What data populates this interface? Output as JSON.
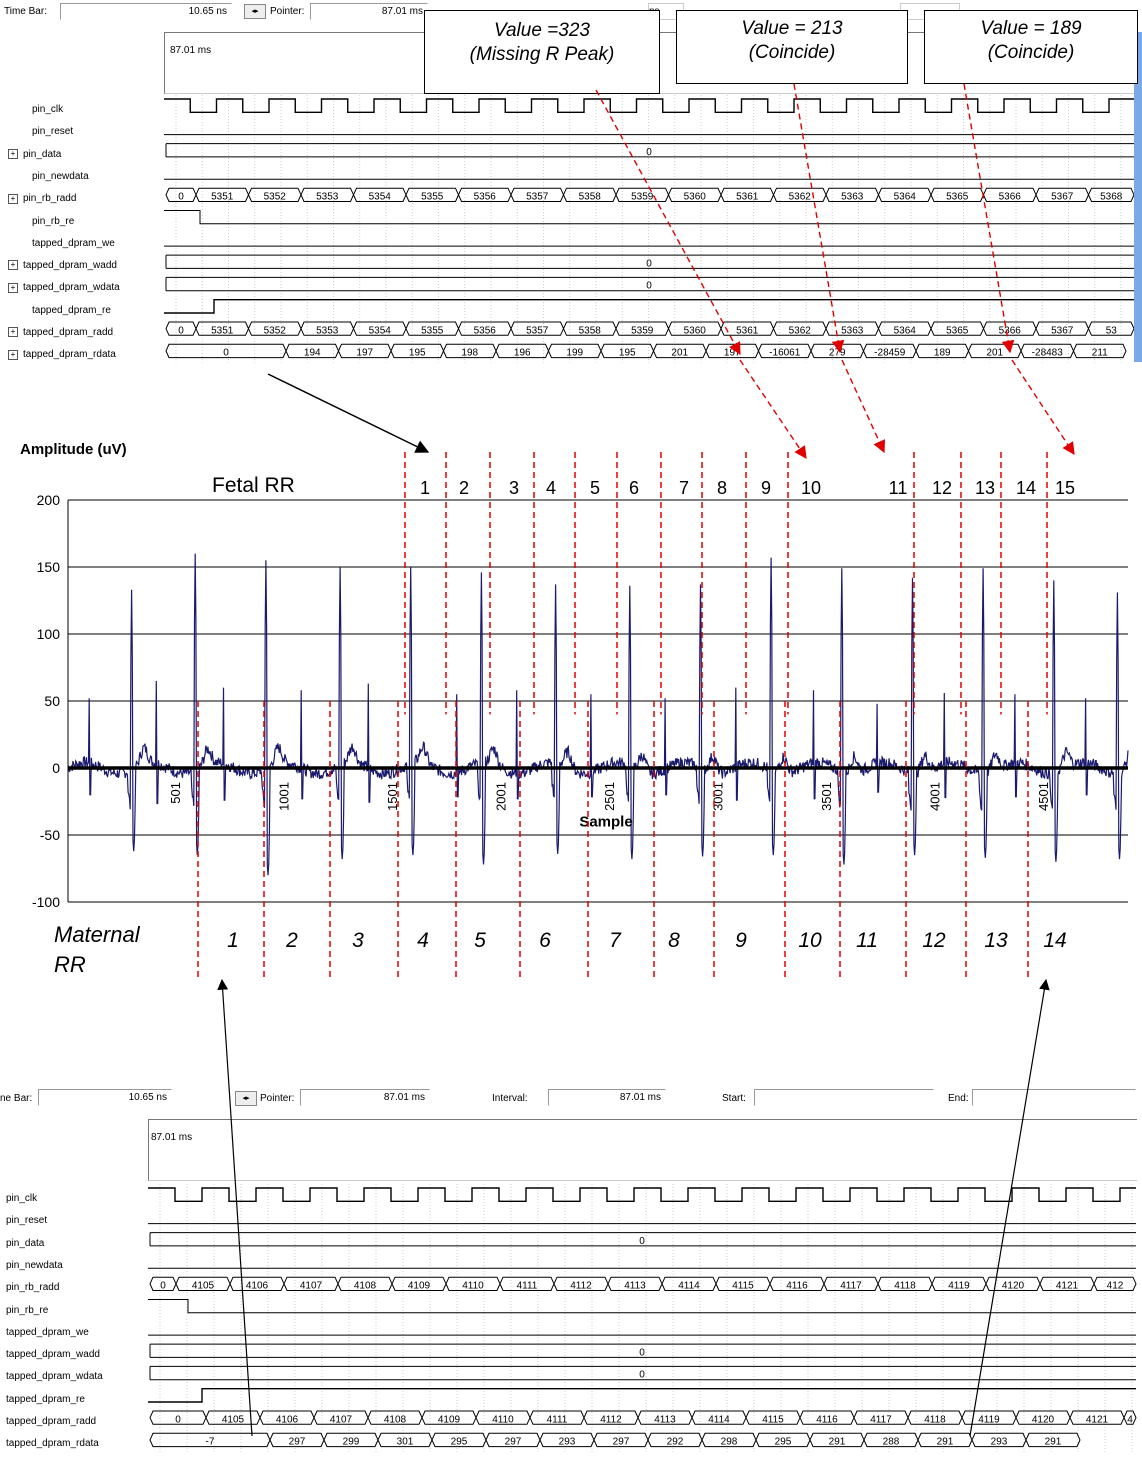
{
  "top_panel": {
    "time_bar_label": "Time Bar:",
    "time_bar_value": "10.65 ns",
    "pointer_label": "Pointer:",
    "pointer_value": "87.01 ms",
    "extra_value_fragment": "ns",
    "timestamp": "87.01 ms",
    "signals": [
      {
        "name": "pin_clk",
        "expand": false
      },
      {
        "name": "pin_reset",
        "expand": false
      },
      {
        "name": "pin_data",
        "expand": true
      },
      {
        "name": "pin_newdata",
        "expand": false
      },
      {
        "name": "pin_rb_radd",
        "expand": true
      },
      {
        "name": "pin_rb_re",
        "expand": false
      },
      {
        "name": "tapped_dpram_we",
        "expand": false
      },
      {
        "name": "tapped_dpram_wadd",
        "expand": true
      },
      {
        "name": "tapped_dpram_wdata",
        "expand": true
      },
      {
        "name": "tapped_dpram_re",
        "expand": false
      },
      {
        "name": "tapped_dpram_radd",
        "expand": true
      },
      {
        "name": "tapped_dpram_rdata",
        "expand": true
      }
    ],
    "pin_data_value": "0",
    "wadd_value": "0",
    "wdata_value": "0",
    "pin_rb_radd": [
      "0",
      "5351",
      "5352",
      "5353",
      "5354",
      "5355",
      "5356",
      "5357",
      "5358",
      "5359",
      "5360",
      "5361",
      "5362",
      "5363",
      "5364",
      "5365",
      "5366",
      "5367",
      "5368"
    ],
    "dpram_radd": [
      "0",
      "5351",
      "5352",
      "5353",
      "5354",
      "5355",
      "5356",
      "5357",
      "5358",
      "5359",
      "5360",
      "5361",
      "5362",
      "5363",
      "5364",
      "5365",
      "5366",
      "5367",
      "53"
    ],
    "dpram_rdata": [
      "0",
      "194",
      "197",
      "195",
      "198",
      "196",
      "199",
      "195",
      "201",
      "197",
      "-16061",
      "279",
      "-28459",
      "189",
      "201",
      "-28483",
      "211"
    ]
  },
  "callouts": [
    {
      "line1": "Value =323",
      "line2": "(Missing R Peak)"
    },
    {
      "line1": "Value = 213",
      "line2": "(Coincide)"
    },
    {
      "line1": "Value = 189",
      "line2": "(Coincide)"
    }
  ],
  "bottom_panel": {
    "time_bar_label": "ne Bar:",
    "time_bar_value": "10.65 ns",
    "pointer_label": "Pointer:",
    "pointer_value": "87.01 ms",
    "interval_label": "Interval:",
    "interval_value": "87.01 ms",
    "start_label": "Start:",
    "end_label": "End:",
    "timestamp": "87.01 ms",
    "signals": [
      "pin_clk",
      "pin_reset",
      "pin_data",
      "pin_newdata",
      "pin_rb_radd",
      "pin_rb_re",
      "tapped_dpram_we",
      "tapped_dpram_wadd",
      "tapped_dpram_wdata",
      "tapped_dpram_re",
      "tapped_dpram_radd",
      "tapped_dpram_rdata"
    ],
    "pin_data_value": "0",
    "wadd_value": "0",
    "wdata_value": "0",
    "pin_rb_radd": [
      "0",
      "4105",
      "4106",
      "4107",
      "4108",
      "4109",
      "4110",
      "4111",
      "4112",
      "4113",
      "4114",
      "4115",
      "4116",
      "4117",
      "4118",
      "4119",
      "4120",
      "4121",
      "412"
    ],
    "dpram_radd": [
      "0",
      "4105",
      "4106",
      "4107",
      "4108",
      "4109",
      "4110",
      "4111",
      "4112",
      "4113",
      "4114",
      "4115",
      "4116",
      "4117",
      "4118",
      "4119",
      "4120",
      "4121",
      "4"
    ],
    "dpram_rdata": [
      "-7",
      "297",
      "299",
      "301",
      "295",
      "297",
      "293",
      "297",
      "292",
      "298",
      "295",
      "291",
      "288",
      "291",
      "293",
      "291"
    ]
  },
  "chart_data": {
    "type": "line",
    "ylabel": "Amplitude (uV)",
    "xlabel": "Sample",
    "ylim": [
      -100,
      200
    ],
    "yticks": [
      -100,
      -50,
      0,
      50,
      100,
      150,
      200
    ],
    "xticks": [
      "501",
      "1001",
      "1501",
      "2001",
      "2501",
      "3001",
      "3501",
      "4001",
      "4501"
    ],
    "grid": "horizontal",
    "series_color": "#1a1a6e",
    "fetal_label": "Fetal RR",
    "fetal_numbers": [
      "1",
      "2",
      "3",
      "4",
      "5",
      "6",
      "7",
      "8",
      "9",
      "10",
      "11",
      "12",
      "13",
      "14",
      "15"
    ],
    "maternal_label_line1": "Maternal",
    "maternal_label_line2": "RR",
    "maternal_numbers": [
      "1",
      "2",
      "3",
      "4",
      "5",
      "6",
      "7",
      "8",
      "9",
      "10",
      "11",
      "12",
      "13",
      "14"
    ],
    "maternal_peaks": [
      {
        "sample": 180,
        "max": 133,
        "min": -62
      },
      {
        "sample": 360,
        "max": 160,
        "min": -65
      },
      {
        "sample": 560,
        "max": 155,
        "min": -80
      },
      {
        "sample": 770,
        "max": 150,
        "min": -68
      },
      {
        "sample": 970,
        "max": 150,
        "min": -65
      },
      {
        "sample": 1170,
        "max": 146,
        "min": -72
      },
      {
        "sample": 1380,
        "max": 137,
        "min": -64
      },
      {
        "sample": 1590,
        "max": 136,
        "min": -68
      },
      {
        "sample": 1790,
        "max": 137,
        "min": -66
      },
      {
        "sample": 1990,
        "max": 157,
        "min": -65
      },
      {
        "sample": 2190,
        "max": 149,
        "min": -72
      },
      {
        "sample": 2390,
        "max": 142,
        "min": -65
      },
      {
        "sample": 2590,
        "max": 149,
        "min": -67
      },
      {
        "sample": 2790,
        "max": 140,
        "min": -70
      },
      {
        "sample": 2970,
        "max": 131,
        "min": -68
      }
    ],
    "fetal_peaks": [
      {
        "sample": 60,
        "max": 52
      },
      {
        "sample": 250,
        "max": 65
      },
      {
        "sample": 440,
        "max": 60
      },
      {
        "sample": 660,
        "max": 58
      },
      {
        "sample": 850,
        "max": 63
      },
      {
        "sample": 1100,
        "max": 55
      },
      {
        "sample": 1270,
        "max": 58
      },
      {
        "sample": 1480,
        "max": 55
      },
      {
        "sample": 1690,
        "max": 52
      },
      {
        "sample": 1890,
        "max": 60
      },
      {
        "sample": 2110,
        "max": 58
      },
      {
        "sample": 2290,
        "max": 48
      },
      {
        "sample": 2480,
        "max": 56
      },
      {
        "sample": 2680,
        "max": 55
      },
      {
        "sample": 2880,
        "max": 52
      }
    ]
  }
}
